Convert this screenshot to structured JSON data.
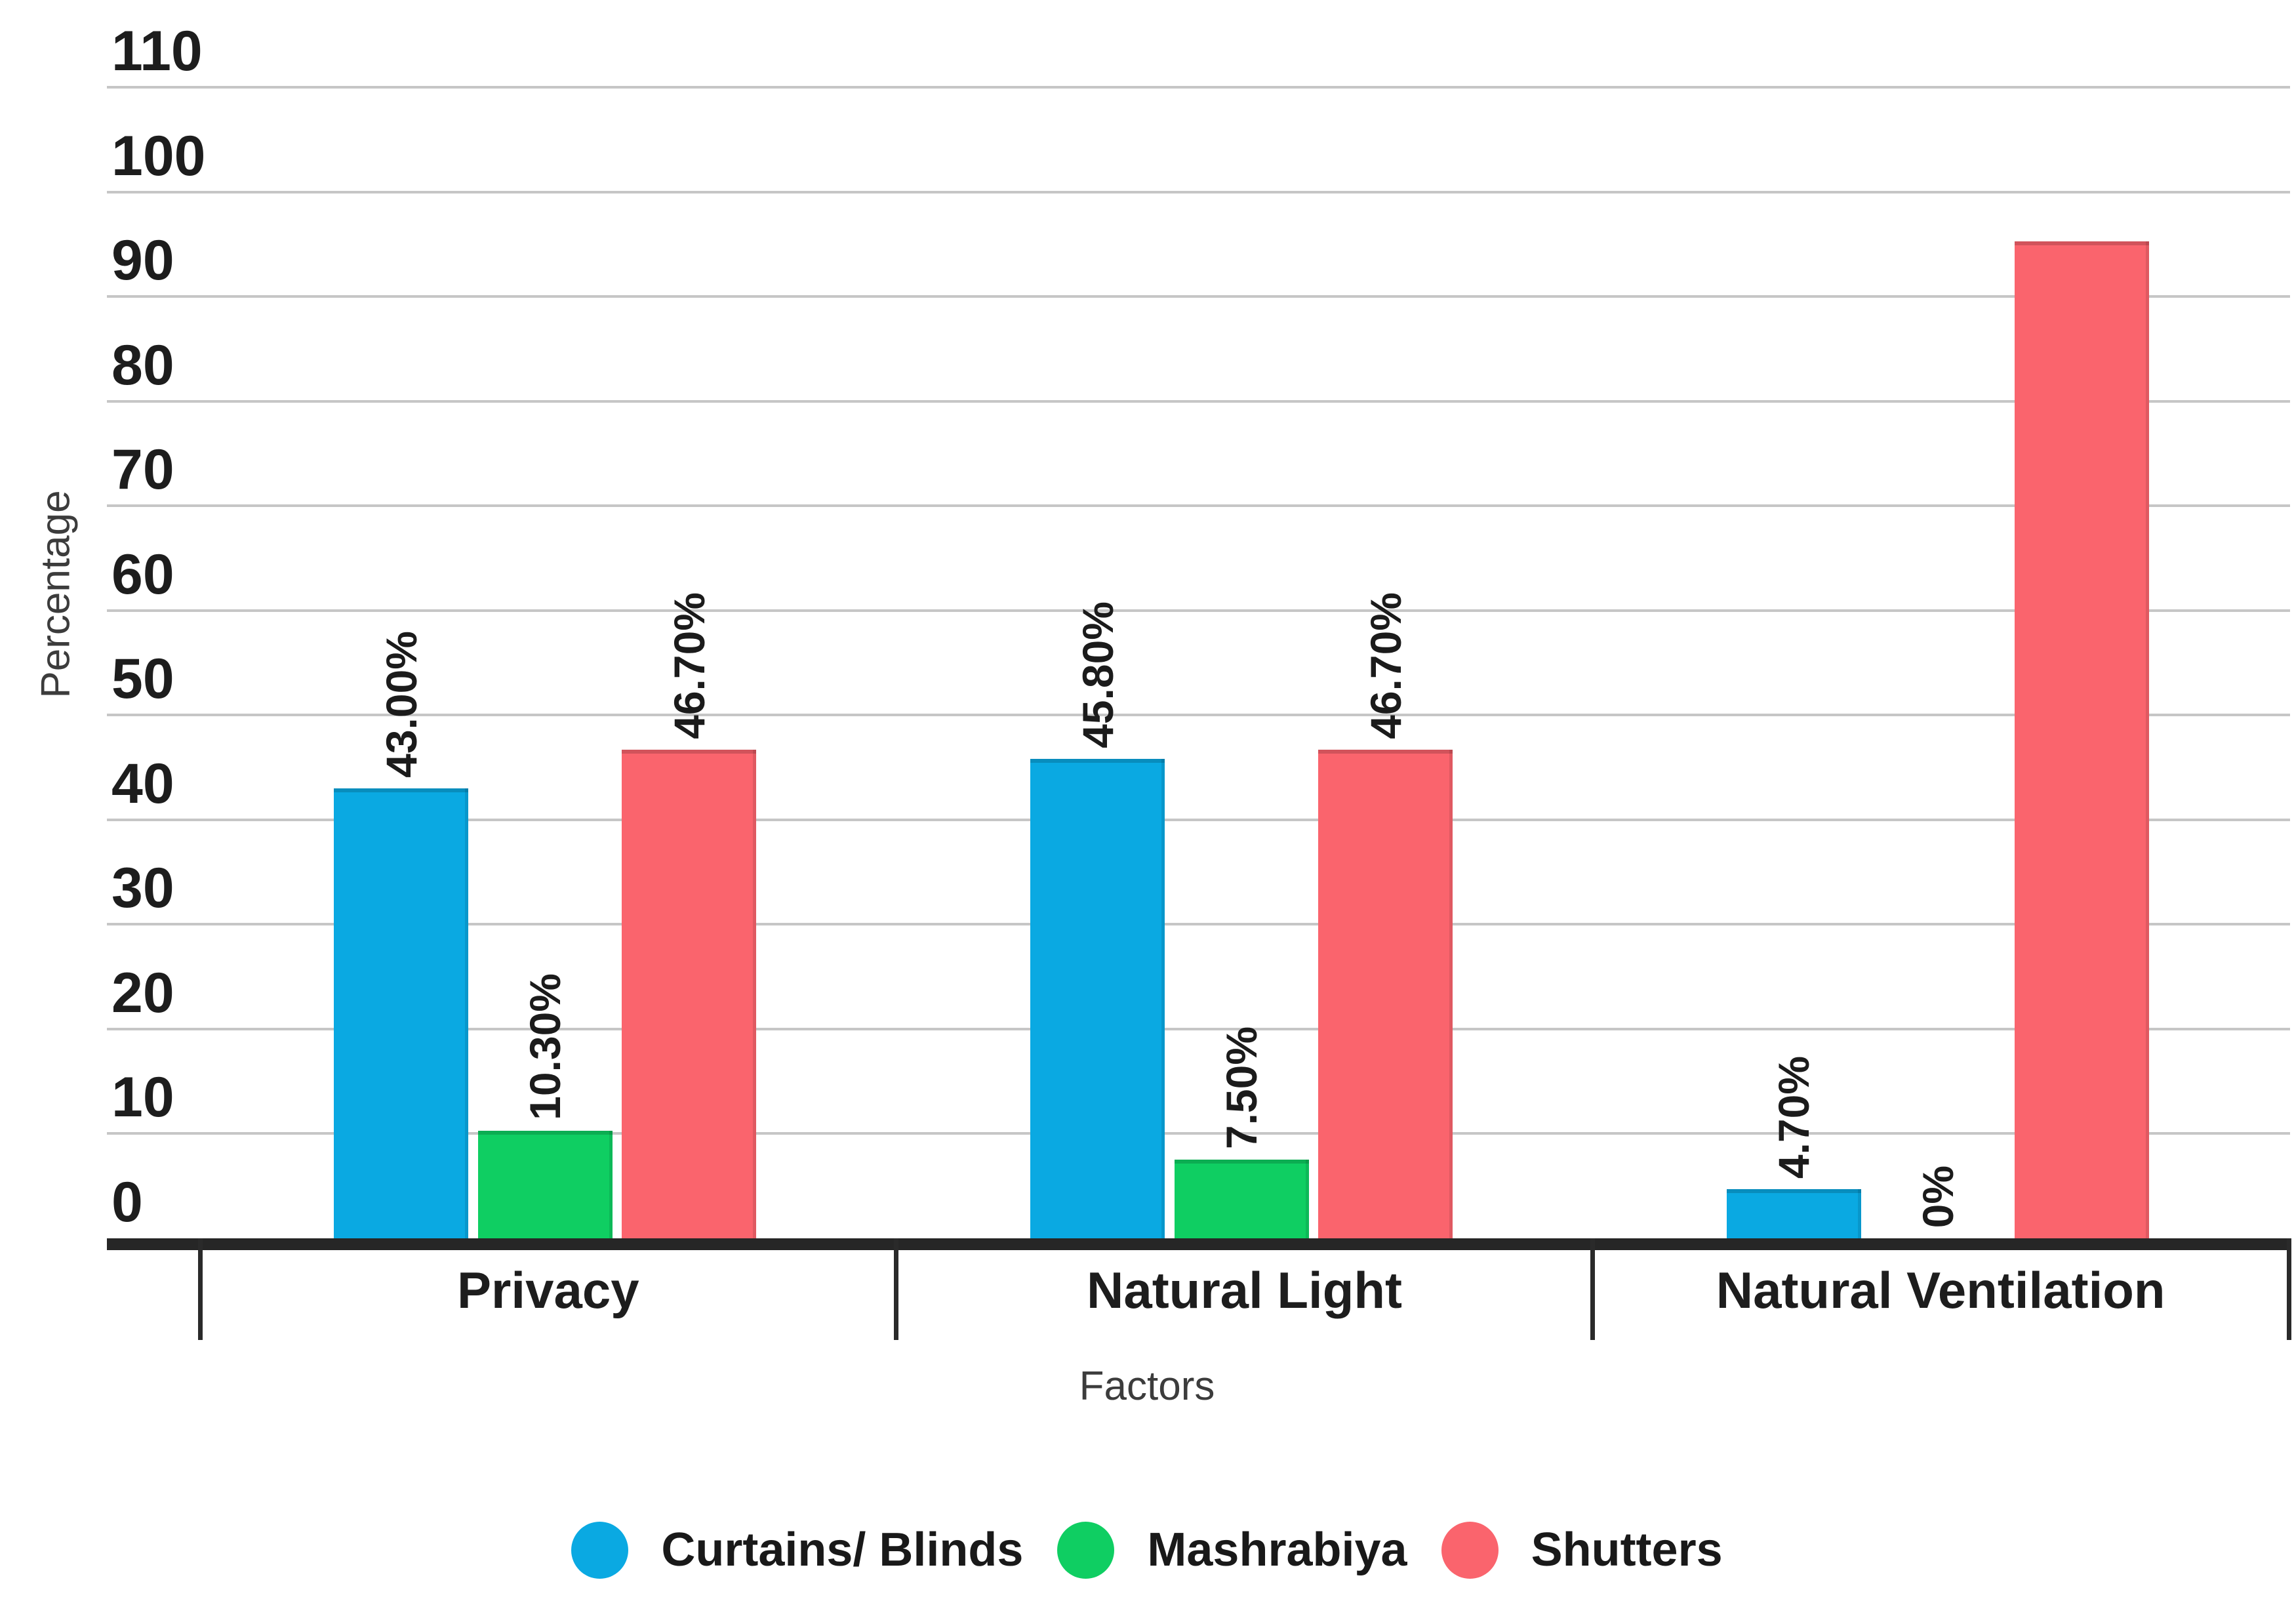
{
  "chart_data": {
    "type": "bar",
    "title": "",
    "xlabel": "Factors",
    "ylabel": "Percentage",
    "categories": [
      "Privacy",
      "Natural Light",
      "Natural Ventilation"
    ],
    "series": [
      {
        "name": "Curtains/ Blinds",
        "color": "#0aa9e2",
        "values": [
          43.0,
          45.8,
          4.7
        ],
        "data_labels": [
          "43.00%",
          "45.80%",
          "4.70%"
        ]
      },
      {
        "name": "Mashrabiya",
        "color": "#0fce62",
        "values": [
          10.3,
          7.5,
          0
        ],
        "data_labels": [
          "10.30%",
          "7.50%",
          "0%"
        ]
      },
      {
        "name": "Shutters",
        "color": "#fa646d",
        "values": [
          46.7,
          46.7,
          95.3
        ],
        "data_labels": [
          "46.70%",
          "46.70%",
          ""
        ]
      }
    ],
    "y_ticks": [
      0,
      10,
      20,
      30,
      40,
      50,
      60,
      70,
      80,
      90,
      100,
      110
    ],
    "ylim": [
      0,
      110
    ],
    "grid": "horizontal",
    "legend_position": "bottom",
    "data_label_rotation": -90
  }
}
